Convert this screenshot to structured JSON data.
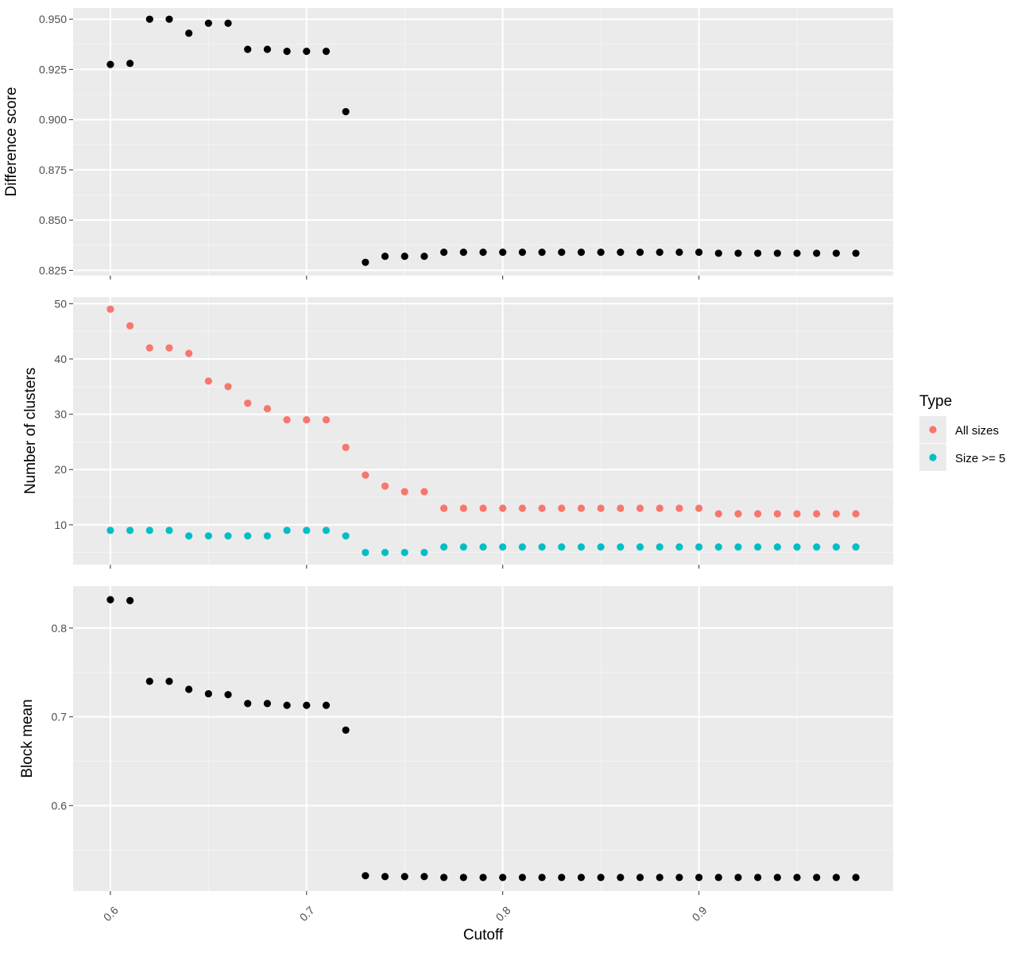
{
  "colors": {
    "panel_bg": "#EBEBEB",
    "grid_major": "#FFFFFF",
    "grid_minor": "#F5F5F5",
    "tick": "#333333",
    "point_black": "#000000",
    "all_sizes": "#F8766D",
    "size_ge_5": "#00BFC4"
  },
  "chart_data": {
    "type": "scatter",
    "xlabel": "Cutoff",
    "x_ticks": [
      0.6,
      0.7,
      0.8,
      0.9
    ],
    "x_tick_labels": [
      "0.6",
      "0.7",
      "0.8",
      "0.9"
    ],
    "xlim": [
      0.581,
      0.999
    ],
    "x": [
      0.6,
      0.61,
      0.62,
      0.63,
      0.64,
      0.65,
      0.66,
      0.67,
      0.68,
      0.69,
      0.7,
      0.71,
      0.72,
      0.73,
      0.74,
      0.75,
      0.76,
      0.77,
      0.78,
      0.79,
      0.8,
      0.81,
      0.82,
      0.83,
      0.84,
      0.85,
      0.86,
      0.87,
      0.88,
      0.89,
      0.9,
      0.91,
      0.92,
      0.93,
      0.94,
      0.95,
      0.96,
      0.97,
      0.98
    ],
    "panels": [
      {
        "ylabel": "Difference score",
        "ylim": [
          0.8224,
          0.9556
        ],
        "y_ticks": [
          0.825,
          0.85,
          0.875,
          0.9,
          0.925,
          0.95
        ],
        "y_tick_labels": [
          "0.825",
          "0.850",
          "0.875",
          "0.900",
          "0.925",
          "0.950"
        ],
        "series": [
          {
            "color_key": "point_black",
            "values": [
              0.9275,
              0.928,
              0.95,
              0.95,
              0.943,
              0.948,
              0.948,
              0.935,
              0.935,
              0.934,
              0.934,
              0.934,
              0.904,
              0.829,
              0.832,
              0.832,
              0.832,
              0.834,
              0.834,
              0.834,
              0.834,
              0.834,
              0.834,
              0.834,
              0.834,
              0.834,
              0.834,
              0.834,
              0.834,
              0.834,
              0.834,
              0.8335,
              0.8335,
              0.8335,
              0.8335,
              0.8335,
              0.8335,
              0.8335,
              0.8335
            ]
          }
        ]
      },
      {
        "ylabel": "Number of clusters",
        "ylim": [
          2.8,
          51.2
        ],
        "y_ticks": [
          10,
          20,
          30,
          40,
          50
        ],
        "y_tick_labels": [
          "10",
          "20",
          "30",
          "40",
          "50"
        ],
        "series": [
          {
            "name": "All sizes",
            "color_key": "all_sizes",
            "values": [
              49,
              46,
              42,
              42,
              41,
              36,
              35,
              32,
              31,
              29,
              29,
              29,
              24,
              19,
              17,
              16,
              16,
              13,
              13,
              13,
              13,
              13,
              13,
              13,
              13,
              13,
              13,
              13,
              13,
              13,
              13,
              12,
              12,
              12,
              12,
              12,
              12,
              12,
              12
            ]
          },
          {
            "name": "Size >= 5",
            "color_key": "size_ge_5",
            "values": [
              9,
              9,
              9,
              9,
              8,
              8,
              8,
              8,
              8,
              9,
              9,
              9,
              8,
              5,
              5,
              5,
              5,
              6,
              6,
              6,
              6,
              6,
              6,
              6,
              6,
              6,
              6,
              6,
              6,
              6,
              6,
              6,
              6,
              6,
              6,
              6,
              6,
              6,
              6
            ]
          }
        ]
      },
      {
        "ylabel": "Block mean",
        "ylim": [
          0.5037,
          0.8473
        ],
        "y_ticks": [
          0.6,
          0.7,
          0.8
        ],
        "y_tick_labels": [
          "0.6",
          "0.7",
          "0.8"
        ],
        "series": [
          {
            "color_key": "point_black",
            "values": [
              0.832,
              0.831,
              0.74,
              0.74,
              0.731,
              0.726,
              0.725,
              0.715,
              0.715,
              0.713,
              0.713,
              0.713,
              0.685,
              0.521,
              0.52,
              0.52,
              0.52,
              0.519,
              0.519,
              0.519,
              0.519,
              0.519,
              0.519,
              0.519,
              0.519,
              0.519,
              0.519,
              0.519,
              0.519,
              0.519,
              0.519,
              0.519,
              0.519,
              0.519,
              0.519,
              0.519,
              0.519,
              0.519,
              0.519
            ]
          }
        ]
      }
    ],
    "legend": {
      "title": "Type",
      "position": "right",
      "entries": [
        {
          "label": "All sizes",
          "color_key": "all_sizes"
        },
        {
          "label": "Size >= 5",
          "color_key": "size_ge_5"
        }
      ]
    },
    "grid": true
  }
}
